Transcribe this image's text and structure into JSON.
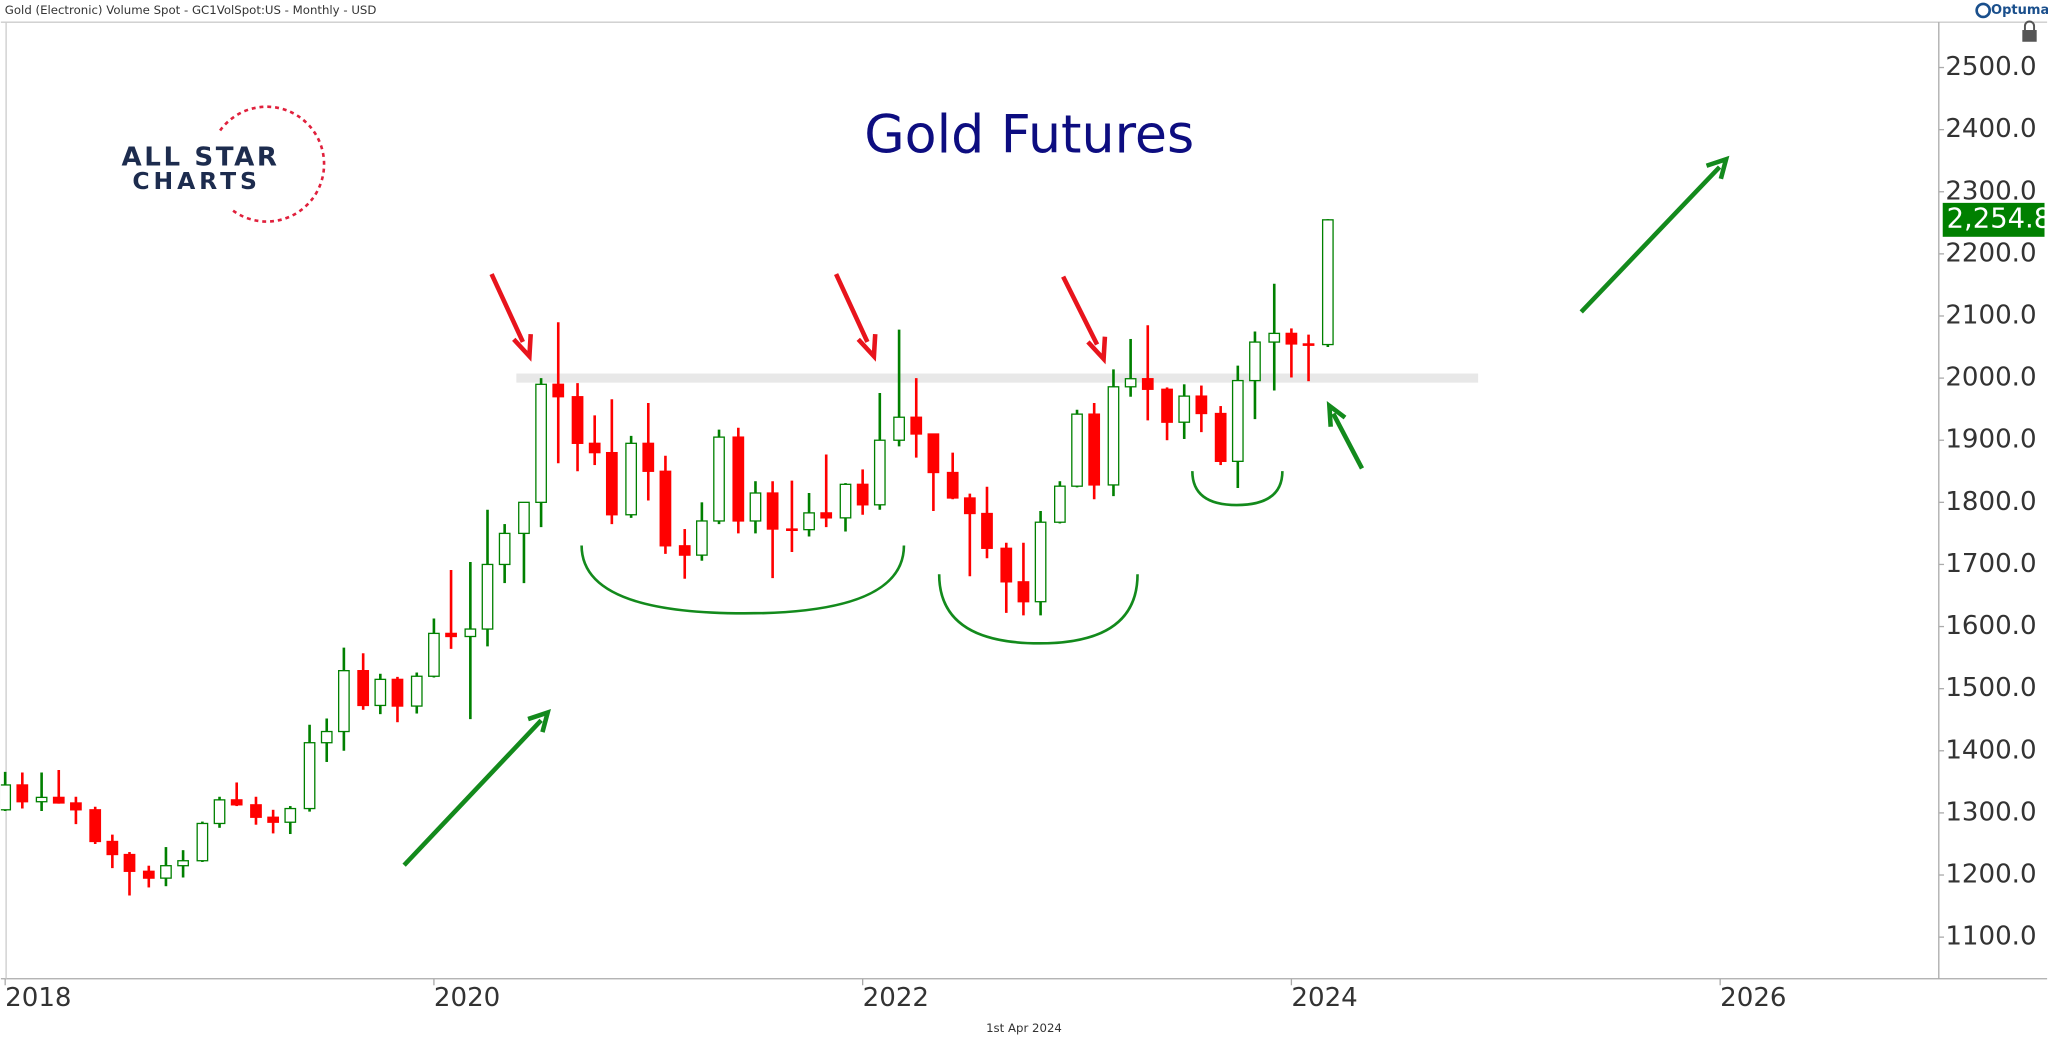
{
  "header": {
    "info": "Gold (Electronic) Volume Spot - GC1VolSpot:US - Monthly - USD",
    "brand": "Optuma",
    "date": "1st Apr 2024"
  },
  "logo": {
    "line1": "ALL STAR",
    "line2": "CHARTS"
  },
  "chart_data": {
    "type": "candlestick",
    "title": "Gold Futures",
    "x": [
      2018,
      2018.08,
      2018.17,
      2018.25,
      2018.33,
      2018.42,
      2018.5,
      2018.58,
      2018.67,
      2018.75,
      2018.83,
      2018.92,
      2019,
      2019.08,
      2019.17,
      2019.25,
      2019.33,
      2019.42,
      2019.5,
      2019.58,
      2019.67,
      2019.75,
      2019.83,
      2019.92,
      2020,
      2020.08,
      2020.17,
      2020.25,
      2020.33,
      2020.42,
      2020.5,
      2020.58,
      2020.67,
      2020.75,
      2020.83,
      2020.92,
      2021,
      2021.08,
      2021.17,
      2021.25,
      2021.33,
      2021.42,
      2021.5,
      2021.58,
      2021.67,
      2021.75,
      2021.83,
      2021.92,
      2022,
      2022.08,
      2022.17,
      2022.25,
      2022.33,
      2022.42,
      2022.5,
      2022.58,
      2022.67,
      2022.75,
      2022.83,
      2022.92,
      2023,
      2023.08,
      2023.17,
      2023.25,
      2023.33,
      2023.42,
      2023.5,
      2023.58,
      2023.67,
      2023.75,
      2023.83,
      2023.92,
      2024,
      2024.08,
      2024.17
    ],
    "open": [
      1305,
      1345,
      1318,
      1325,
      1316,
      1305,
      1254,
      1233,
      1206,
      1195,
      1215,
      1223,
      1283,
      1321,
      1313,
      1293,
      1285,
      1307,
      1413,
      1431,
      1529,
      1473,
      1515,
      1472,
      1520,
      1589,
      1584,
      1596,
      1700,
      1750,
      1800,
      1990,
      1970,
      1895,
      1880,
      1780,
      1895,
      1850,
      1730,
      1715,
      1770,
      1905,
      1770,
      1815,
      1757,
      1756,
      1783,
      1775,
      1829,
      1796,
      1900,
      1937,
      1910,
      1848,
      1807,
      1782,
      1726,
      1672,
      1640,
      1768,
      1826,
      1942,
      1828,
      1986,
      1999,
      1982,
      1929,
      1971,
      1943,
      1866,
      1996,
      2058,
      2072,
      2055,
      2054
    ],
    "high": [
      1366,
      1365,
      1365,
      1369,
      1326,
      1310,
      1265,
      1237,
      1215,
      1245,
      1240,
      1286,
      1326,
      1349,
      1326,
      1305,
      1311,
      1442,
      1452,
      1566,
      1557,
      1524,
      1519,
      1526,
      1613,
      1691,
      1704,
      1788,
      1765,
      1800,
      2000,
      2090,
      1992,
      1940,
      1966,
      1907,
      1960,
      1875,
      1757,
      1800,
      1917,
      1920,
      1834,
      1834,
      1835,
      1815,
      1877,
      1831,
      1853,
      1976,
      2078,
      2000,
      1910,
      1880,
      1814,
      1825,
      1735,
      1735,
      1786,
      1834,
      1949,
      1960,
      2014,
      2063,
      2085,
      1985,
      1990,
      1988,
      1955,
      2020,
      2075,
      2152,
      2080,
      2070,
      2256
    ],
    "low": [
      1303,
      1307,
      1303,
      1315,
      1282,
      1250,
      1211,
      1167,
      1180,
      1182,
      1196,
      1221,
      1276,
      1311,
      1281,
      1267,
      1266,
      1302,
      1382,
      1400,
      1466,
      1459,
      1446,
      1460,
      1518,
      1564,
      1451,
      1568,
      1670,
      1670,
      1760,
      1863,
      1850,
      1860,
      1765,
      1775,
      1803,
      1717,
      1677,
      1706,
      1765,
      1750,
      1750,
      1678,
      1720,
      1745,
      1760,
      1753,
      1780,
      1788,
      1890,
      1872,
      1786,
      1805,
      1681,
      1710,
      1622,
      1618,
      1618,
      1766,
      1824,
      1805,
      1810,
      1970,
      1932,
      1900,
      1902,
      1913,
      1860,
      1823,
      1934,
      1980,
      2001,
      1995,
      2050
    ],
    "close": [
      1345,
      1318,
      1325,
      1316,
      1305,
      1254,
      1233,
      1206,
      1195,
      1215,
      1223,
      1283,
      1321,
      1313,
      1293,
      1285,
      1307,
      1413,
      1431,
      1529,
      1473,
      1515,
      1472,
      1520,
      1589,
      1584,
      1596,
      1700,
      1750,
      1800,
      1990,
      1970,
      1895,
      1880,
      1780,
      1895,
      1850,
      1730,
      1715,
      1770,
      1905,
      1770,
      1815,
      1757,
      1756,
      1783,
      1775,
      1829,
      1796,
      1900,
      1937,
      1910,
      1848,
      1807,
      1782,
      1726,
      1672,
      1640,
      1768,
      1826,
      1942,
      1828,
      1986,
      1999,
      1982,
      1929,
      1971,
      1943,
      1866,
      1996,
      2058,
      2072,
      2055,
      2054,
      2254.8
    ],
    "up_color": "#008000",
    "down_color": "#ff0000",
    "xlim": [
      2017.98,
      2027.02
    ],
    "xticks": [
      2018,
      2020,
      2022,
      2024,
      2026
    ],
    "ylim": [
      1033,
      2573
    ],
    "yticks": [
      {
        "value": 1100,
        "label": "1100.0"
      },
      {
        "value": 1200,
        "label": "1200.0"
      },
      {
        "value": 1300,
        "label": "1300.0"
      },
      {
        "value": 1400,
        "label": "1400.0"
      },
      {
        "value": 1500,
        "label": "1500.0"
      },
      {
        "value": 1600,
        "label": "1600.0"
      },
      {
        "value": 1700,
        "label": "1700.0"
      },
      {
        "value": 1800,
        "label": "1800.0"
      },
      {
        "value": 1900,
        "label": "1900.0"
      },
      {
        "value": 2000,
        "label": "2000.0"
      },
      {
        "value": 2100,
        "label": "2100.0"
      },
      {
        "value": 2200,
        "label": "2200.0"
      },
      {
        "value": 2300,
        "label": "2300.0"
      },
      {
        "value": 2400,
        "label": "2400.0"
      },
      {
        "value": 2500,
        "label": "2500.0"
      }
    ],
    "level": 2000,
    "last_price": {
      "value": 2254.8,
      "label": "2,254.8"
    }
  }
}
